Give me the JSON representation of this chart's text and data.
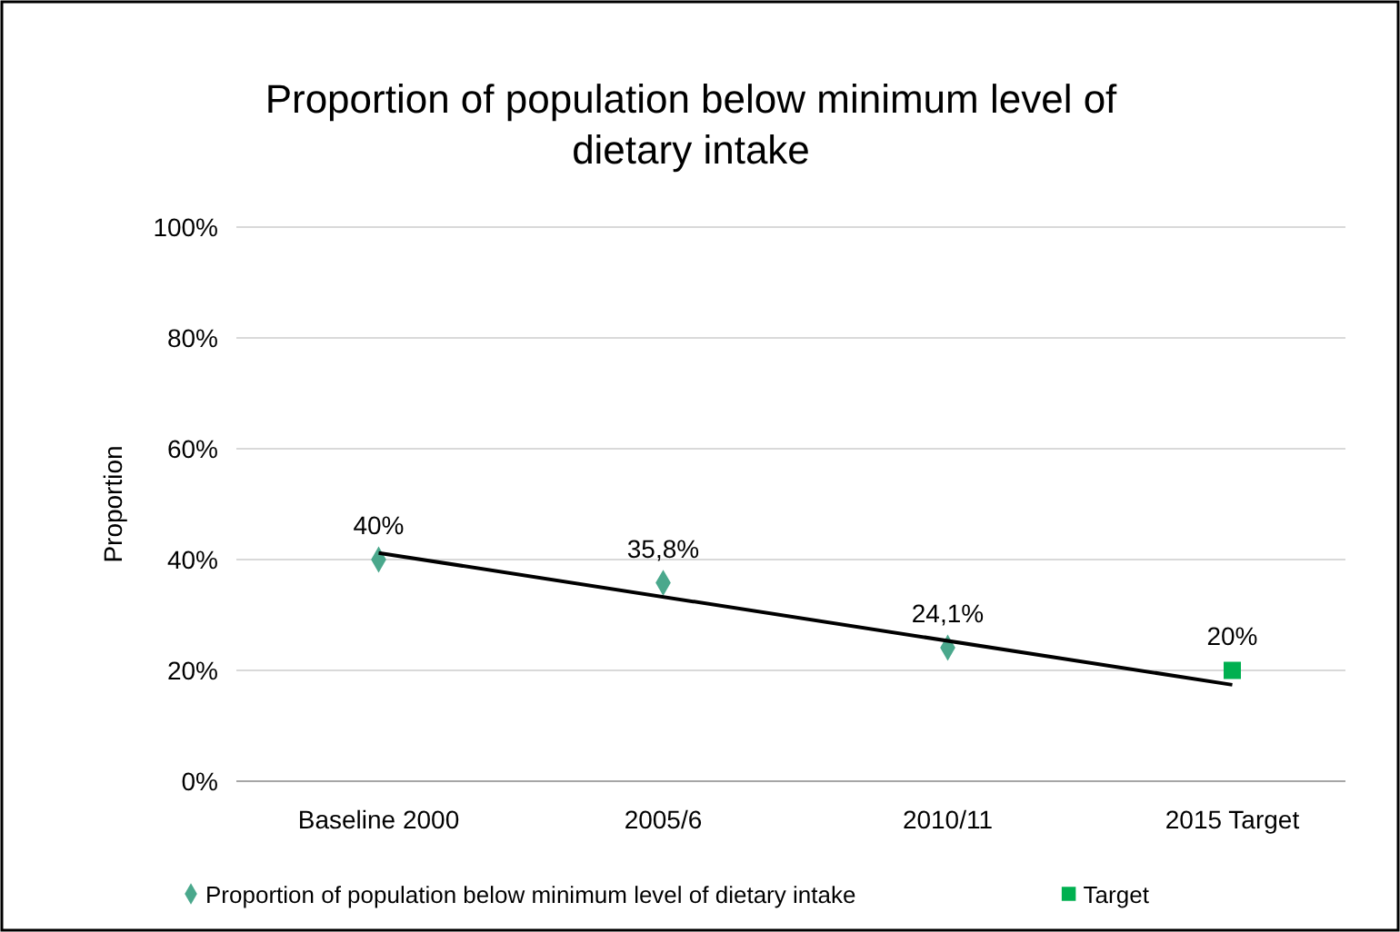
{
  "chart_data": {
    "type": "scatter",
    "title": "Proportion of population below minimum level of dietary intake",
    "ylabel": "Proportion",
    "categories": [
      "Baseline 2000",
      "2005/6",
      "2010/11",
      "2015 Target"
    ],
    "series": [
      {
        "name": "Proportion of population below minimum level of dietary intake",
        "color": "#4aa88c",
        "marker": "diamond",
        "x": [
          "Baseline 2000",
          "2005/6",
          "2010/11"
        ],
        "values": [
          40,
          35.8,
          24.1
        ],
        "value_labels": [
          "40%",
          "35,8%",
          "24,1%"
        ]
      },
      {
        "name": "Target",
        "color": "#00b050",
        "marker": "square",
        "x": [
          "2015 Target"
        ],
        "values": [
          20
        ],
        "value_labels": [
          "20%"
        ]
      },
      {
        "type": "line",
        "color": "#000000",
        "marker": "none",
        "x": [
          "Baseline 2000",
          "2015 Target"
        ],
        "values": [
          41.2,
          17.4
        ]
      }
    ],
    "ylim": [
      0,
      100
    ],
    "yticks": [
      {
        "value": 0,
        "label": "0%"
      },
      {
        "value": 20,
        "label": "20%"
      },
      {
        "value": 40,
        "label": "40%"
      },
      {
        "value": 60,
        "label": "60%"
      },
      {
        "value": 80,
        "label": "80%"
      },
      {
        "value": 100,
        "label": "100%"
      }
    ],
    "grid": "y",
    "legend": "bottom"
  }
}
